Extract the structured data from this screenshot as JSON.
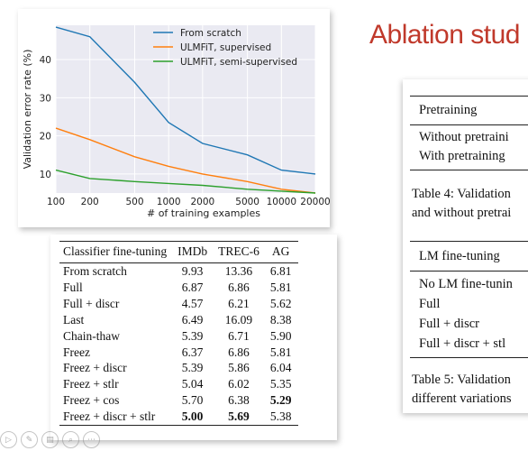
{
  "chart_data": {
    "type": "line",
    "xlabel": "# of training examples",
    "ylabel": "Validation error rate (%)",
    "xscale": "log",
    "xticks": [
      "100",
      "200",
      "500",
      "1000",
      "2000",
      "5000",
      "10000",
      "20000"
    ],
    "yticks": [
      "10",
      "20",
      "30",
      "40"
    ],
    "xlim": [
      100,
      20000
    ],
    "ylim": [
      5,
      49
    ],
    "grid": true,
    "legend": "top-right",
    "x": [
      100,
      200,
      500,
      1000,
      2000,
      5000,
      10000,
      20000
    ],
    "series": [
      {
        "name": "From scratch",
        "color": "#1f77b4",
        "values": [
          48.5,
          46,
          34,
          23.5,
          18,
          15,
          11,
          10
        ]
      },
      {
        "name": "ULMFiT, supervised",
        "color": "#ff7f0e",
        "values": [
          22,
          19,
          14.5,
          12,
          10,
          8,
          6,
          5
        ]
      },
      {
        "name": "ULMFiT, semi-supervised",
        "color": "#2ca02c",
        "values": [
          11,
          8.8,
          8,
          7.5,
          7,
          6,
          5.5,
          5
        ]
      }
    ]
  },
  "table1": {
    "headers": [
      "Classifier fine-tuning",
      "IMDb",
      "TREC-6",
      "AG"
    ],
    "rows": [
      [
        "From scratch",
        "9.93",
        "13.36",
        "6.81"
      ],
      [
        "Full",
        "6.87",
        "6.86",
        "5.81"
      ],
      [
        "Full + discr",
        "4.57",
        "6.21",
        "5.62"
      ],
      [
        "Last",
        "6.49",
        "16.09",
        "8.38"
      ],
      [
        "Chain-thaw",
        "5.39",
        "6.71",
        "5.90"
      ],
      [
        "Freez",
        "6.37",
        "6.86",
        "5.81"
      ],
      [
        "Freez + discr",
        "5.39",
        "5.86",
        "6.04"
      ],
      [
        "Freez + stlr",
        "5.04",
        "6.02",
        "5.35"
      ],
      [
        "Freez + cos",
        "5.70",
        "6.38",
        "5.29"
      ],
      [
        "Freez + discr + stlr",
        "5.00",
        "5.69",
        "5.38"
      ]
    ]
  },
  "slide": {
    "title": "Ablation stud",
    "table2_header": "Pretraining",
    "table2_rows": [
      "Without pretraini",
      "With pretraining"
    ],
    "caption4_line1": "Table 4:  Validation",
    "caption4_line2": "and without pretrai",
    "table3_header": "LM fine-tuning",
    "table3_rows": [
      "No LM fine-tunin",
      "Full",
      "Full + discr",
      "Full + discr + stl"
    ],
    "caption5_line1": "Table 5:  Validation",
    "caption5_line2": "different variations"
  },
  "toolbar": {
    "buttons": [
      {
        "name": "play",
        "glyph": "▷"
      },
      {
        "name": "pen",
        "glyph": "✎"
      },
      {
        "name": "slides",
        "glyph": "▤"
      },
      {
        "name": "zoom",
        "glyph": "⌕"
      },
      {
        "name": "more",
        "glyph": "⋯"
      }
    ]
  }
}
